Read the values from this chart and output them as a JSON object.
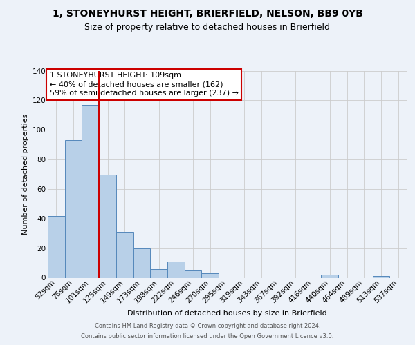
{
  "title": "1, STONEYHURST HEIGHT, BRIERFIELD, NELSON, BB9 0YB",
  "subtitle": "Size of property relative to detached houses in Brierfield",
  "xlabel": "Distribution of detached houses by size in Brierfield",
  "ylabel": "Number of detached properties",
  "bar_labels": [
    "52sqm",
    "76sqm",
    "101sqm",
    "125sqm",
    "149sqm",
    "173sqm",
    "198sqm",
    "222sqm",
    "246sqm",
    "270sqm",
    "295sqm",
    "319sqm",
    "343sqm",
    "367sqm",
    "392sqm",
    "416sqm",
    "440sqm",
    "464sqm",
    "489sqm",
    "513sqm",
    "537sqm"
  ],
  "bar_values": [
    42,
    93,
    117,
    70,
    31,
    20,
    6,
    11,
    5,
    3,
    0,
    0,
    0,
    0,
    0,
    0,
    2,
    0,
    0,
    1,
    0
  ],
  "bar_color": "#b8d0e8",
  "bar_edge_color": "#5588bb",
  "grid_color": "#cccccc",
  "background_color": "#edf2f9",
  "vline_x": 2.5,
  "vline_color": "#cc0000",
  "annotation_line1": "1 STONEYHURST HEIGHT: 109sqm",
  "annotation_line2": "← 40% of detached houses are smaller (162)",
  "annotation_line3": "59% of semi-detached houses are larger (237) →",
  "annotation_box_facecolor": "#ffffff",
  "annotation_box_edgecolor": "#cc0000",
  "ylim_max": 140,
  "yticks": [
    0,
    20,
    40,
    60,
    80,
    100,
    120,
    140
  ],
  "footer_line1": "Contains HM Land Registry data © Crown copyright and database right 2024.",
  "footer_line2": "Contains public sector information licensed under the Open Government Licence v3.0.",
  "title_fontsize": 10,
  "subtitle_fontsize": 9,
  "axis_label_fontsize": 8,
  "tick_fontsize": 7.5,
  "annotation_fontsize": 8,
  "footer_fontsize": 6
}
